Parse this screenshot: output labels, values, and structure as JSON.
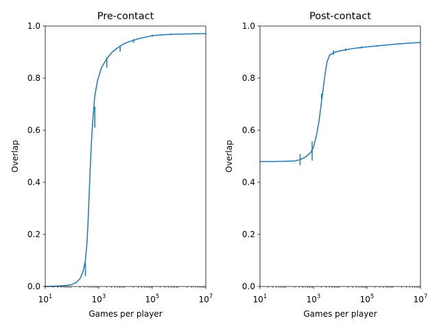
{
  "colors": {
    "series": "#1f77b4",
    "axis": "#000000",
    "background": "#ffffff"
  },
  "chart_data": [
    {
      "type": "line",
      "title": "Pre-contact",
      "xlabel": "Games per player",
      "ylabel": "Overlap",
      "xscale": "log",
      "xlim_exp": [
        1,
        7
      ],
      "ylim": [
        0,
        1
      ],
      "xticks": [
        {
          "base": "10",
          "exp": "1",
          "v": 1
        },
        {
          "base": "10",
          "exp": "3",
          "v": 3
        },
        {
          "base": "10",
          "exp": "5",
          "v": 5
        },
        {
          "base": "10",
          "exp": "7",
          "v": 7
        }
      ],
      "yticks": [
        "0.0",
        "0.2",
        "0.4",
        "0.6",
        "0.8",
        "1.0"
      ],
      "series": [
        {
          "name": "overlap",
          "points": [
            [
              1.0,
              0.0
            ],
            [
              1.5,
              0.002
            ],
            [
              1.8,
              0.004
            ],
            [
              2.0,
              0.008
            ],
            [
              2.15,
              0.015
            ],
            [
              2.3,
              0.03
            ],
            [
              2.42,
              0.06
            ],
            [
              2.5,
              0.1
            ],
            [
              2.56,
              0.17
            ],
            [
              2.6,
              0.25
            ],
            [
              2.65,
              0.38
            ],
            [
              2.7,
              0.5
            ],
            [
              2.75,
              0.6
            ],
            [
              2.8,
              0.67
            ],
            [
              2.85,
              0.73
            ],
            [
              2.95,
              0.79
            ],
            [
              3.1,
              0.84
            ],
            [
              3.3,
              0.875
            ],
            [
              3.5,
              0.9
            ],
            [
              3.75,
              0.92
            ],
            [
              4.0,
              0.935
            ],
            [
              4.5,
              0.952
            ],
            [
              5.0,
              0.963
            ],
            [
              5.5,
              0.967
            ],
            [
              6.0,
              0.969
            ],
            [
              6.5,
              0.97
            ],
            [
              7.0,
              0.971
            ]
          ]
        }
      ],
      "error_bars": [
        [
          2.5,
          0.065,
          0.025
        ],
        [
          2.85,
          0.65,
          0.04
        ],
        [
          3.3,
          0.86,
          0.02
        ],
        [
          3.8,
          0.912,
          0.01
        ],
        [
          4.3,
          0.943,
          0.007
        ],
        [
          5.0,
          0.963,
          0.004
        ],
        [
          5.7,
          0.968,
          0.003
        ],
        [
          6.4,
          0.97,
          0.002
        ]
      ]
    },
    {
      "type": "line",
      "title": "Post-contact",
      "xlabel": "Games per player",
      "ylabel": "Overlap",
      "xscale": "log",
      "xlim_exp": [
        1,
        7
      ],
      "ylim": [
        0,
        1
      ],
      "xticks": [
        {
          "base": "10",
          "exp": "1",
          "v": 1
        },
        {
          "base": "10",
          "exp": "3",
          "v": 3
        },
        {
          "base": "10",
          "exp": "5",
          "v": 5
        },
        {
          "base": "10",
          "exp": "7",
          "v": 7
        }
      ],
      "yticks": [
        "0.0",
        "0.2",
        "0.4",
        "0.6",
        "0.8",
        "1.0"
      ],
      "series": [
        {
          "name": "overlap",
          "points": [
            [
              1.0,
              0.48
            ],
            [
              1.5,
              0.48
            ],
            [
              2.0,
              0.481
            ],
            [
              2.3,
              0.482
            ],
            [
              2.5,
              0.487
            ],
            [
              2.7,
              0.497
            ],
            [
              2.9,
              0.515
            ],
            [
              3.0,
              0.535
            ],
            [
              3.1,
              0.575
            ],
            [
              3.2,
              0.63
            ],
            [
              3.3,
              0.71
            ],
            [
              3.4,
              0.79
            ],
            [
              3.5,
              0.86
            ],
            [
              3.6,
              0.888
            ],
            [
              3.75,
              0.898
            ],
            [
              4.0,
              0.905
            ],
            [
              4.5,
              0.914
            ],
            [
              5.0,
              0.92
            ],
            [
              5.5,
              0.925
            ],
            [
              6.0,
              0.93
            ],
            [
              6.5,
              0.934
            ],
            [
              7.0,
              0.937
            ]
          ]
        }
      ],
      "error_bars": [
        [
          2.5,
          0.487,
          0.022
        ],
        [
          2.95,
          0.52,
          0.037
        ],
        [
          3.3,
          0.73,
          0.01
        ],
        [
          3.75,
          0.898,
          0.008
        ],
        [
          4.2,
          0.909,
          0.005
        ],
        [
          4.8,
          0.918,
          0.004
        ],
        [
          5.4,
          0.924,
          0.003
        ],
        [
          6.1,
          0.931,
          0.002
        ]
      ]
    }
  ]
}
